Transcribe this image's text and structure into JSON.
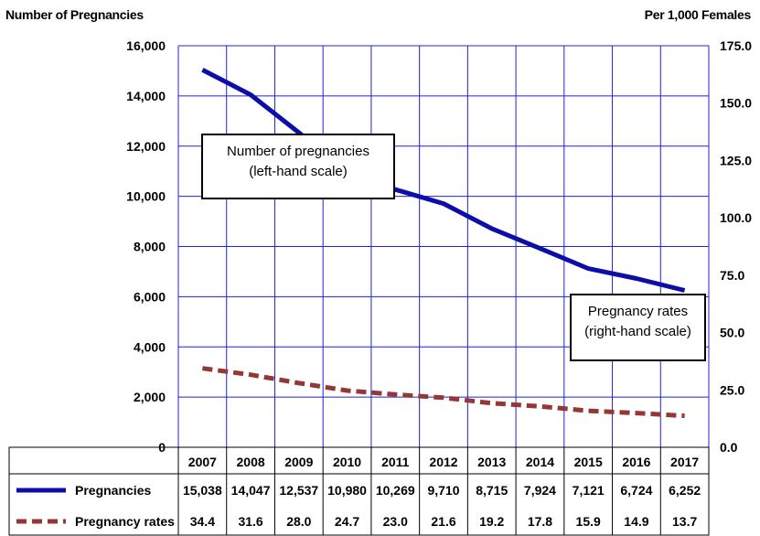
{
  "chart_data": {
    "type": "line",
    "left_axis_title": "Number of Pregnancies",
    "right_axis_title": "Per 1,000 Females",
    "categories": [
      "2007",
      "2008",
      "2009",
      "2010",
      "2011",
      "2012",
      "2013",
      "2014",
      "2015",
      "2016",
      "2017"
    ],
    "series": [
      {
        "name": "Pregnancies",
        "axis": "left",
        "color": "#0d0da8",
        "style": "solid",
        "values": [
          15038,
          14047,
          12537,
          10980,
          10269,
          9710,
          8715,
          7924,
          7121,
          6724,
          6252
        ],
        "labels": [
          "15,038",
          "14,047",
          "12,537",
          "10,980",
          "10,269",
          "9,710",
          "8,715",
          "7,924",
          "7,121",
          "6,724",
          "6,252"
        ]
      },
      {
        "name": "Pregnancy rates",
        "axis": "right",
        "color": "#953735",
        "style": "dashed",
        "values": [
          34.4,
          31.6,
          28.0,
          24.7,
          23.0,
          21.6,
          19.2,
          17.8,
          15.9,
          14.9,
          13.7
        ],
        "labels": [
          "34.4",
          "31.6",
          "28.0",
          "24.7",
          "23.0",
          "21.6",
          "19.2",
          "17.8",
          "15.9",
          "14.9",
          "13.7"
        ]
      }
    ],
    "left_ylim": [
      0,
      16000
    ],
    "left_ticks": [
      "0",
      "2,000",
      "4,000",
      "6,000",
      "8,000",
      "10,000",
      "12,000",
      "14,000",
      "16,000"
    ],
    "right_ylim": [
      0,
      175
    ],
    "right_ticks": [
      "0.0",
      "25.0",
      "50.0",
      "75.0",
      "100.0",
      "125.0",
      "150.0",
      "175.0"
    ],
    "grid": true,
    "grid_color": "#2020dd",
    "annotations": [
      {
        "line1": "Number of pregnancies",
        "line2": "(left-hand scale)"
      },
      {
        "line1": "Pregnancy rates",
        "line2": "(right-hand scale)"
      }
    ]
  }
}
